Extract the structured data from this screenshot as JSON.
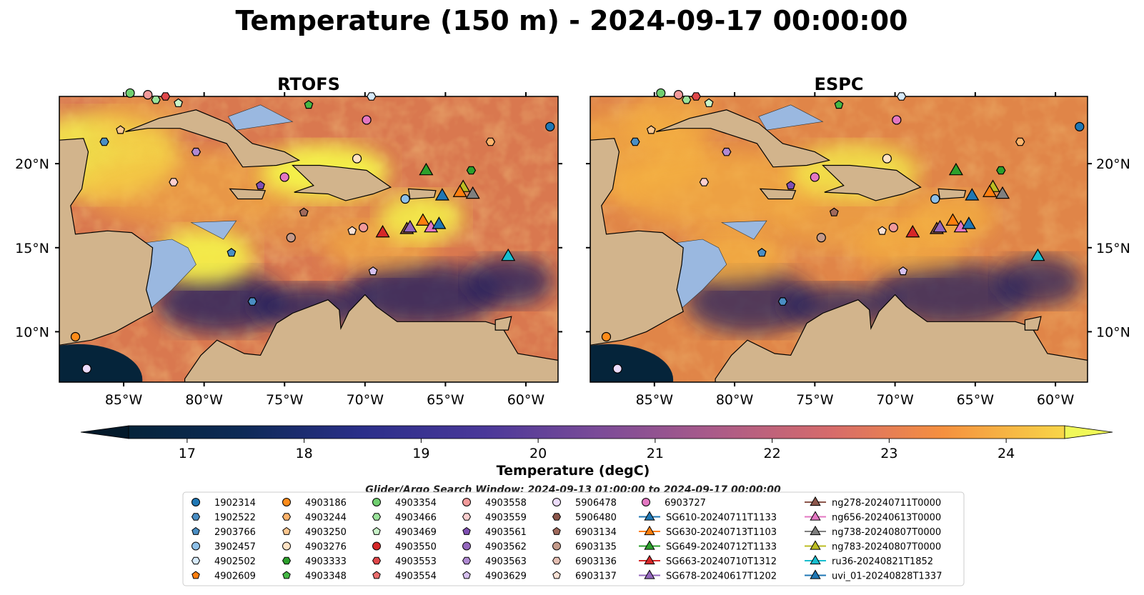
{
  "title": "Temperature (150 m) - 2024-09-17 00:00:00",
  "panels": [
    {
      "title": "RTOFS",
      "warm_hi": [
        0.78,
        0.52,
        0.3,
        0.55,
        0.85,
        0.9,
        0.4,
        0.95
      ],
      "cool_lo": [
        0.1,
        0.05,
        0.15,
        0.05
      ]
    },
    {
      "title": "ESPC",
      "warm_hi": [
        0.55,
        0.6,
        0.45,
        0.6,
        0.7,
        0.7,
        0.55,
        0.75
      ],
      "cool_lo": [
        0.3,
        0.25,
        0.35,
        0.3
      ]
    }
  ],
  "axes": {
    "lon_ticks": [
      -85,
      -80,
      -75,
      -70,
      -65,
      -60
    ],
    "lon_labels": [
      "85°W",
      "80°W",
      "75°W",
      "70°W",
      "65°W",
      "60°W"
    ],
    "lat_ticks": [
      10,
      15,
      20
    ],
    "lat_labels": [
      "10°N",
      "15°N",
      "20°N"
    ],
    "lon_range": [
      -89,
      -58
    ],
    "lat_range": [
      7,
      24
    ]
  },
  "colorbar": {
    "label": "Temperature (degC)",
    "ticks": [
      17,
      18,
      19,
      20,
      21,
      22,
      23,
      24
    ],
    "range": [
      16.5,
      24.5
    ],
    "extend": "both",
    "colormap": "thermal"
  },
  "search_window": "Glider/Argo Search Window: 2024-09-13 01:00:00 to 2024-09-17 00:00:00",
  "colors": {
    "land": "#d2b48c",
    "shelf": "#9ab8e0",
    "deep_cold": "#05243a"
  },
  "chart_data": {
    "type": "map",
    "variable": "Temperature (150 m)",
    "time": "2024-09-17 00:00:00",
    "models": [
      "RTOFS",
      "ESPC"
    ],
    "legend_entries": [
      {
        "name": "1902314",
        "marker": "circle",
        "color": "#1f77b4"
      },
      {
        "name": "1902522",
        "marker": "hexagon",
        "color": "#4a8ec4"
      },
      {
        "name": "2903766",
        "marker": "pentagon",
        "color": "#4a8ec4"
      },
      {
        "name": "3902457",
        "marker": "circle",
        "color": "#8ec0e8"
      },
      {
        "name": "4902502",
        "marker": "hexagon",
        "color": "#d6eafb"
      },
      {
        "name": "4902609",
        "marker": "pentagon",
        "color": "#ff7f0e"
      },
      {
        "name": "4903186",
        "marker": "circle",
        "color": "#ff8c1a"
      },
      {
        "name": "4903244",
        "marker": "hexagon",
        "color": "#ffb36b"
      },
      {
        "name": "4903250",
        "marker": "pentagon",
        "color": "#ffc890"
      },
      {
        "name": "4903276",
        "marker": "circle",
        "color": "#ffe2c4"
      },
      {
        "name": "4903333",
        "marker": "hexagon",
        "color": "#2ca02c"
      },
      {
        "name": "4903348",
        "marker": "pentagon",
        "color": "#45b845"
      },
      {
        "name": "4903354",
        "marker": "circle",
        "color": "#6fcf6f"
      },
      {
        "name": "4903466",
        "marker": "hexagon",
        "color": "#9be39b"
      },
      {
        "name": "4903469",
        "marker": "pentagon",
        "color": "#caf5ca"
      },
      {
        "name": "4903550",
        "marker": "circle",
        "color": "#d62728"
      },
      {
        "name": "4903553",
        "marker": "hexagon",
        "color": "#e0474a"
      },
      {
        "name": "4903554",
        "marker": "pentagon",
        "color": "#eb6e6e"
      },
      {
        "name": "4903558",
        "marker": "circle",
        "color": "#f29a9a"
      },
      {
        "name": "4903559",
        "marker": "hexagon",
        "color": "#fbcfcf"
      },
      {
        "name": "4903561",
        "marker": "pentagon",
        "color": "#7f4fb3"
      },
      {
        "name": "4903562",
        "marker": "circle",
        "color": "#9467bd"
      },
      {
        "name": "4903563",
        "marker": "hexagon",
        "color": "#b08ad3"
      },
      {
        "name": "4903629",
        "marker": "pentagon",
        "color": "#d6c0ee"
      },
      {
        "name": "5906478",
        "marker": "circle",
        "color": "#ecdcfb"
      },
      {
        "name": "5906480",
        "marker": "hexagon",
        "color": "#8c564b"
      },
      {
        "name": "6903134",
        "marker": "pentagon",
        "color": "#a06a5c"
      },
      {
        "name": "6903135",
        "marker": "circle",
        "color": "#c49a8a"
      },
      {
        "name": "6903136",
        "marker": "hexagon",
        "color": "#e6c0b4"
      },
      {
        "name": "6903137",
        "marker": "pentagon",
        "color": "#fbe2d6"
      },
      {
        "name": "6903727",
        "marker": "circle",
        "color": "#e377c2"
      },
      {
        "name": "SG610-20240711T1133",
        "marker": "triangle",
        "color": "#1f77b4"
      },
      {
        "name": "SG630-20240713T1103",
        "marker": "triangle",
        "color": "#ff7f0e"
      },
      {
        "name": "SG649-20240712T1133",
        "marker": "triangle",
        "color": "#2ca02c"
      },
      {
        "name": "SG663-20240710T1312",
        "marker": "triangle",
        "color": "#d62728"
      },
      {
        "name": "SG678-20240617T1202",
        "marker": "triangle",
        "color": "#9467bd"
      },
      {
        "name": "ng278-20240711T0000",
        "marker": "triangle",
        "color": "#8c564b"
      },
      {
        "name": "ng656-20240613T0000",
        "marker": "triangle",
        "color": "#e377c2"
      },
      {
        "name": "ng738-20240807T0000",
        "marker": "triangle",
        "color": "#7f7f7f"
      },
      {
        "name": "ng783-20240807T0000",
        "marker": "triangle",
        "color": "#bcbd22"
      },
      {
        "name": "ru36-20240821T1852",
        "marker": "triangle",
        "color": "#17becf"
      },
      {
        "name": "uvi_01-20240828T1337",
        "marker": "triangle",
        "color": "#1f77b4"
      }
    ],
    "stations": [
      {
        "id": "1902314",
        "lon": -58.5,
        "lat": 22.2
      },
      {
        "id": "4903186",
        "lon": -88.0,
        "lat": 9.7
      },
      {
        "id": "5906478",
        "lon": -87.3,
        "lat": 7.8
      },
      {
        "id": "1902522",
        "lon": -86.2,
        "lat": 21.3
      },
      {
        "id": "4903250",
        "lon": -85.2,
        "lat": 22.0
      },
      {
        "id": "4903354",
        "lon": -84.6,
        "lat": 24.2
      },
      {
        "id": "4903558",
        "lon": -83.5,
        "lat": 24.1
      },
      {
        "id": "4903466",
        "lon": -83.0,
        "lat": 23.8
      },
      {
        "id": "4903553",
        "lon": -82.4,
        "lat": 24.0
      },
      {
        "id": "4903469",
        "lon": -81.6,
        "lat": 23.6
      },
      {
        "id": "4903563",
        "lon": -80.5,
        "lat": 20.7
      },
      {
        "id": "4903559",
        "lon": -81.9,
        "lat": 18.9
      },
      {
        "id": "2903766",
        "lon": -78.3,
        "lat": 14.7
      },
      {
        "id": "1902522",
        "lon": -77.0,
        "lat": 11.8
      },
      {
        "id": "4903561",
        "lon": -76.5,
        "lat": 18.7
      },
      {
        "id": "6903727",
        "lon": -75.0,
        "lat": 19.2
      },
      {
        "id": "6903134",
        "lon": -73.8,
        "lat": 17.1
      },
      {
        "id": "6903135",
        "lon": -74.6,
        "lat": 15.6
      },
      {
        "id": "4903348",
        "lon": -73.5,
        "lat": 23.5
      },
      {
        "id": "6903727",
        "lon": -69.9,
        "lat": 22.6
      },
      {
        "id": "4902502",
        "lon": -69.6,
        "lat": 24.0
      },
      {
        "id": "4903276",
        "lon": -70.5,
        "lat": 20.3
      },
      {
        "id": "3902457",
        "lon": -67.5,
        "lat": 17.9
      },
      {
        "id": "6903137",
        "lon": -70.8,
        "lat": 16.0
      },
      {
        "id": "4903558",
        "lon": -70.1,
        "lat": 16.2
      },
      {
        "id": "4903629",
        "lon": -69.5,
        "lat": 13.6
      },
      {
        "id": "4903244",
        "lon": -62.2,
        "lat": 21.3
      },
      {
        "id": "4903333",
        "lon": -63.4,
        "lat": 19.6
      }
    ],
    "gliders": [
      {
        "id": "SG649-20240712T1133",
        "lon": -66.2,
        "lat": 19.6
      },
      {
        "id": "uvi_01-20240828T1337",
        "lon": -65.2,
        "lat": 18.1
      },
      {
        "id": "ng783-20240807T0000",
        "lon": -63.9,
        "lat": 18.6
      },
      {
        "id": "SG630-20240713T1103",
        "lon": -64.1,
        "lat": 18.3
      },
      {
        "id": "ng738-20240807T0000",
        "lon": -63.3,
        "lat": 18.2
      },
      {
        "id": "SG663-20240710T1312",
        "lon": -68.9,
        "lat": 15.9
      },
      {
        "id": "ng278-20240711T0000",
        "lon": -67.4,
        "lat": 16.1
      },
      {
        "id": "SG678-20240617T1202",
        "lon": -67.2,
        "lat": 16.2
      },
      {
        "id": "SG630-20240713T1103",
        "lon": -66.4,
        "lat": 16.6
      },
      {
        "id": "ng656-20240613T0000",
        "lon": -65.9,
        "lat": 16.2
      },
      {
        "id": "SG610-20240711T1133",
        "lon": -65.4,
        "lat": 16.4
      },
      {
        "id": "ru36-20240821T1852",
        "lon": -61.1,
        "lat": 14.5
      }
    ]
  }
}
